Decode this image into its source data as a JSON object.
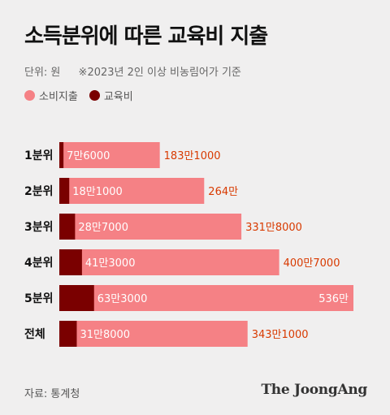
{
  "title": "소득분위에 따른 교육비 지출",
  "unit_text": "단위: 원",
  "note_text": "※2023년 2인 이상 비농림어가 기준",
  "legend": [
    {
      "label": "소비지출",
      "color": "#f58185"
    },
    {
      "label": "교육비",
      "color": "#7a0000"
    }
  ],
  "source": "자료: 통계청",
  "brand": "The JoongAng",
  "chart_data": {
    "type": "bar",
    "orientation": "horizontal",
    "stacked": "overlay",
    "categories": [
      "1분위",
      "2분위",
      "3분위",
      "4분위",
      "5분위",
      "전체"
    ],
    "series": [
      {
        "name": "소비지출",
        "values": [
          1831000,
          2640000,
          3318000,
          4007000,
          5360000,
          3431000
        ],
        "color": "#f58185"
      },
      {
        "name": "교육비",
        "values": [
          76000,
          181000,
          287000,
          413000,
          633000,
          318000
        ],
        "color": "#7a0000"
      }
    ],
    "labels": {
      "소비지출": [
        "183만1000",
        "264만",
        "331만8000",
        "400만7000",
        "536만",
        "343만1000"
      ],
      "교육비": [
        "7만6000",
        "18만1000",
        "28만7000",
        "41만3000",
        "63만3000",
        "31만8000"
      ]
    },
    "xlim": [
      0,
      5360000
    ],
    "grid": false,
    "legend_position": "top-left"
  }
}
